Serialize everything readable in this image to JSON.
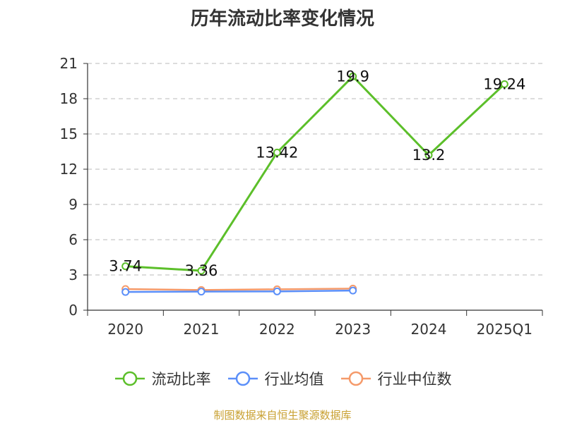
{
  "title": "历年流动比率变化情况",
  "source": "制图数据来自恒生聚源数据库",
  "colors": {
    "ratio": "#5cbf2a",
    "industry_mean": "#5b8ff9",
    "industry_median": "#f59a6a",
    "grid": "#c8c8c8",
    "axis": "#333333"
  },
  "chart_data": {
    "type": "line",
    "title": "历年流动比率变化情况",
    "xlabel": "",
    "ylabel": "",
    "categories": [
      "2020",
      "2021",
      "2022",
      "2023",
      "2024",
      "2025Q1"
    ],
    "ylim": [
      0,
      21
    ],
    "yticks": [
      0,
      3,
      6,
      9,
      12,
      15,
      18,
      21
    ],
    "grid": true,
    "legend_position": "bottom",
    "series": [
      {
        "name": "流动比率",
        "values": [
          3.74,
          3.36,
          13.42,
          19.9,
          13.2,
          19.24
        ],
        "labels": [
          "3.74",
          "3.36",
          "13.42",
          "19.9",
          "13.2",
          "19.24"
        ]
      },
      {
        "name": "行业均值",
        "values": [
          1.55,
          1.58,
          1.6,
          1.67,
          null,
          null
        ]
      },
      {
        "name": "行业中位数",
        "values": [
          1.8,
          1.72,
          1.78,
          1.84,
          null,
          null
        ]
      }
    ]
  }
}
